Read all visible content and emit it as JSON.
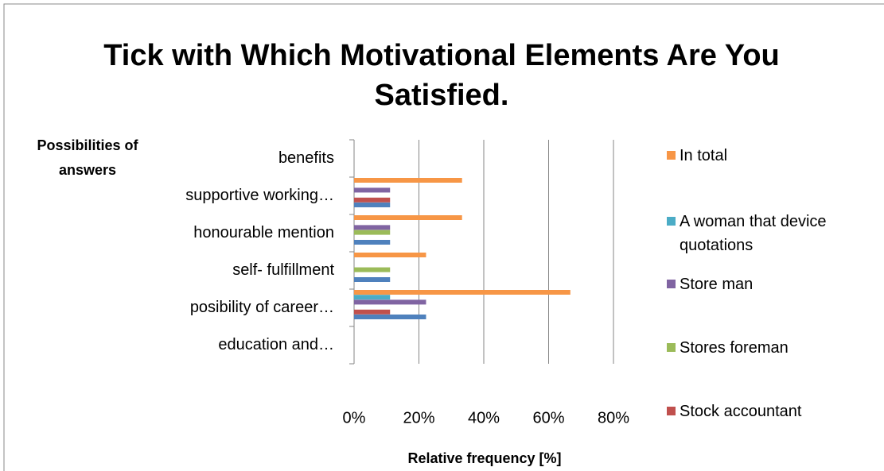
{
  "chart_data": {
    "type": "bar",
    "orientation": "horizontal",
    "title": "Tick with Which Motivational Elements Are You Satisfied.",
    "y_label": "Possibilities of answers",
    "x_label": "Relative frequency [%]",
    "categories": [
      "education and…",
      "posibility of career…",
      "self- fulfillment",
      "honourable mention",
      "supportive  working…",
      "benefits"
    ],
    "series": [
      {
        "name": null,
        "color": "#4f81bd",
        "values": [
          0,
          22.2,
          11.1,
          11.1,
          11.1,
          0
        ]
      },
      {
        "name": "Stock accountant",
        "color": "#c0504d",
        "values": [
          0,
          11.1,
          0,
          0,
          11.1,
          0
        ]
      },
      {
        "name": "Stores foreman",
        "color": "#9bbb59",
        "values": [
          0,
          0,
          11.1,
          11.1,
          0,
          0
        ]
      },
      {
        "name": "Store man",
        "color": "#8064a2",
        "values": [
          0,
          22.2,
          0,
          11.1,
          11.1,
          0
        ]
      },
      {
        "name": "A woman that device quotations",
        "color": "#4bacc6",
        "values": [
          0,
          11.1,
          0,
          0,
          0,
          0
        ]
      },
      {
        "name": "In total",
        "color": "#f79646",
        "values": [
          0,
          66.7,
          22.2,
          33.3,
          33.3,
          0
        ]
      }
    ],
    "xlim": [
      0,
      80
    ],
    "xticks": [
      {
        "value": 0,
        "label": "0%"
      },
      {
        "value": 20,
        "label": "20%"
      },
      {
        "value": 40,
        "label": "40%"
      },
      {
        "value": 60,
        "label": "60%"
      },
      {
        "value": 80,
        "label": "80%"
      }
    ],
    "grid": true,
    "legend": "right"
  }
}
